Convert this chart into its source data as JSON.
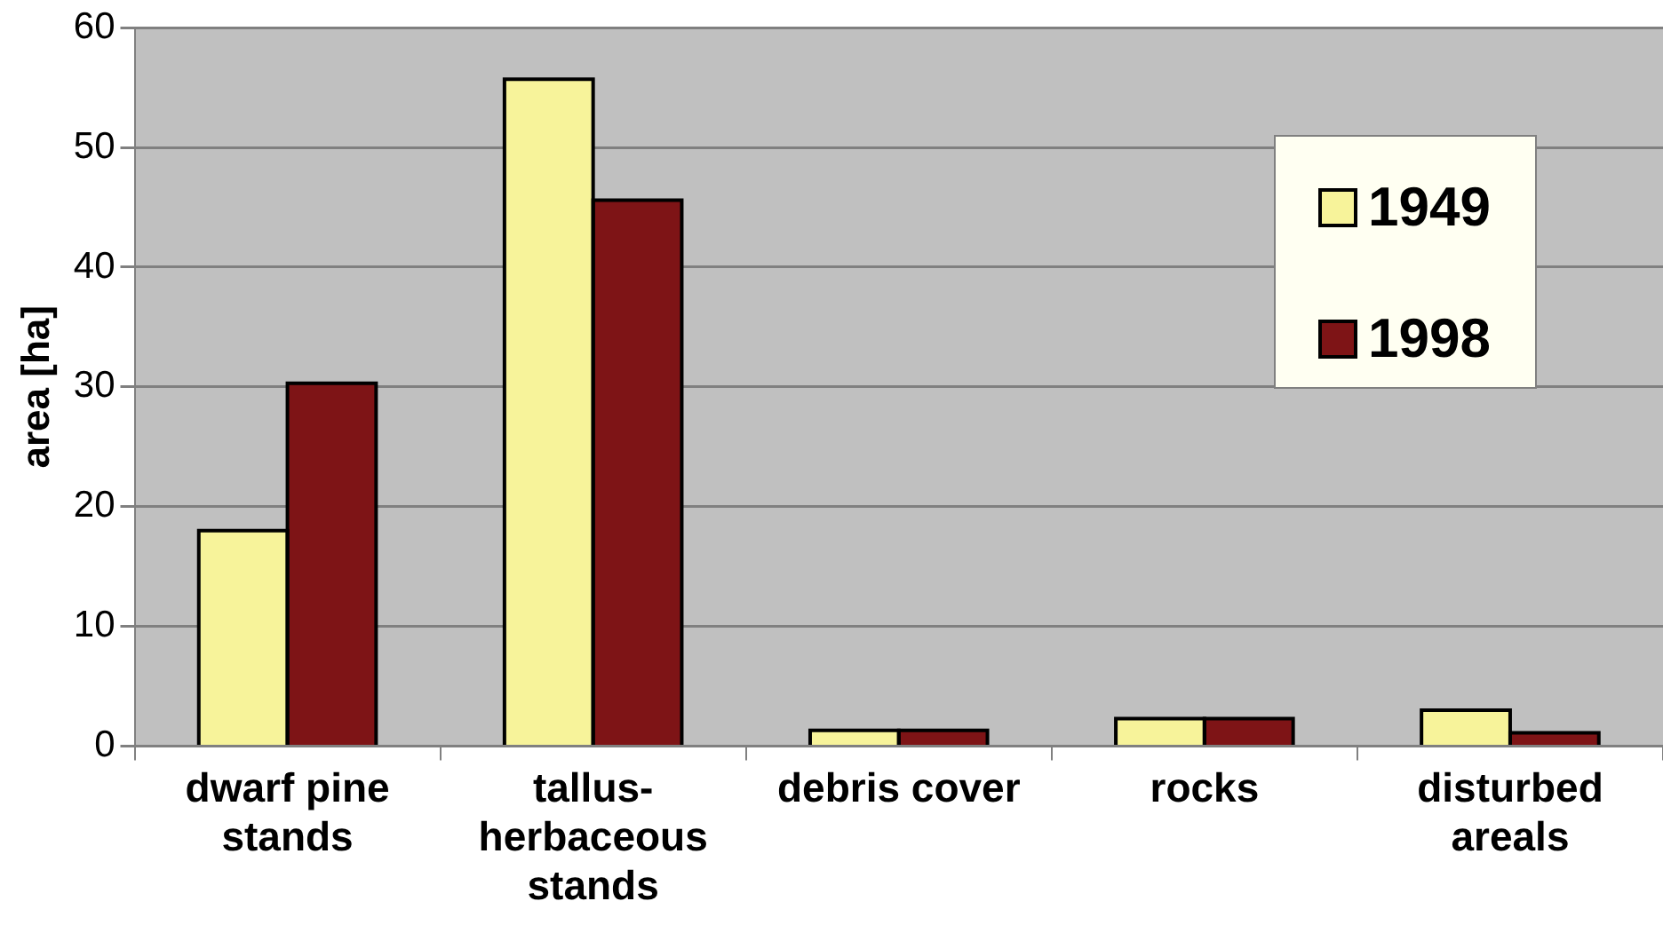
{
  "chart_data": {
    "type": "bar",
    "ylabel": "area [ha]",
    "categories": [
      "dwarf pine stands",
      "tallus-herbaceous stands",
      "debris cover",
      "rocks",
      "disturbed areals"
    ],
    "series": [
      {
        "name": "1949",
        "color": "#f7f39a",
        "values": [
          18,
          55.7,
          1.3,
          2.3,
          3.0
        ]
      },
      {
        "name": "1998",
        "color": "#7e1416",
        "values": [
          30.3,
          45.6,
          1.3,
          2.3,
          1.1
        ]
      }
    ],
    "ylim": [
      0,
      60
    ],
    "yticks": [
      0,
      10,
      20,
      30,
      40,
      50,
      60
    ],
    "grid": "y",
    "legend": "top right"
  }
}
